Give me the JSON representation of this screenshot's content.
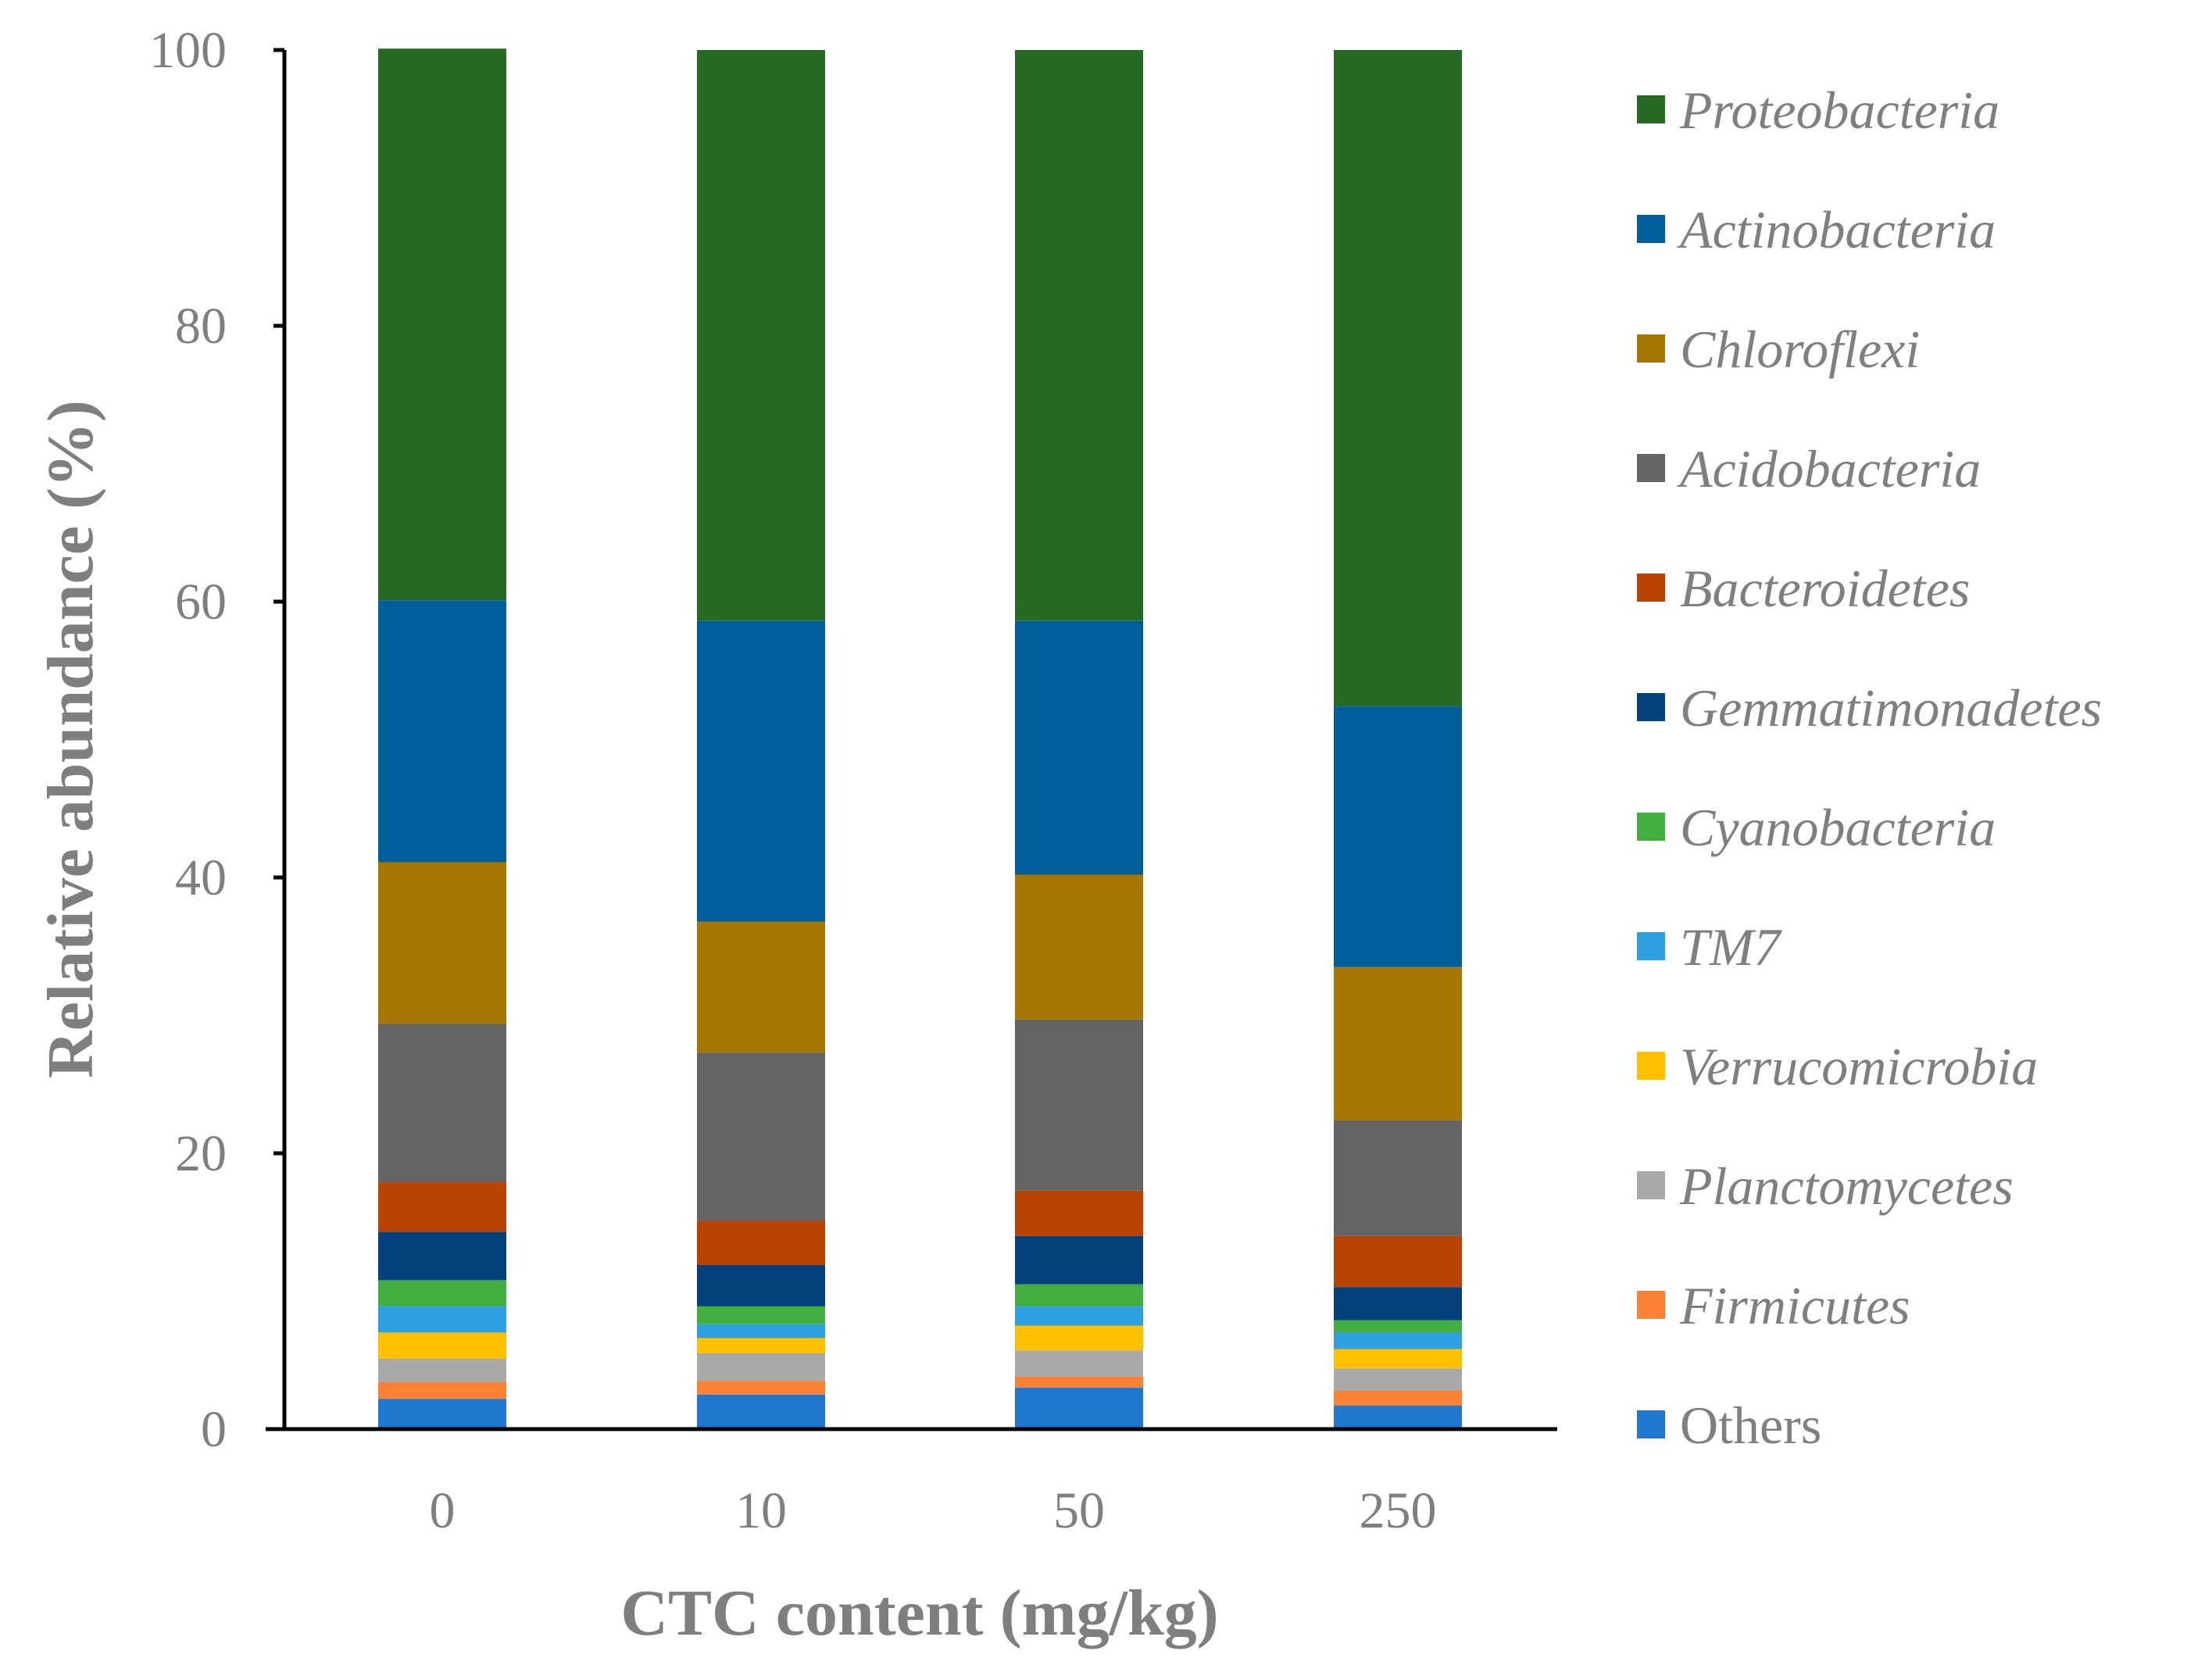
{
  "chart_data": {
    "type": "bar",
    "stacked": true,
    "title": "",
    "xlabel": "CTC content (mg/kg)",
    "ylabel": "Relative abundance (%)",
    "ylim": [
      0,
      100
    ],
    "yticks": [
      0,
      20,
      40,
      60,
      80,
      100
    ],
    "categories": [
      "0",
      "10",
      "50",
      "250"
    ],
    "legend_position": "right",
    "series": [
      {
        "name": "Others",
        "color": "#1f77d0",
        "italic": false,
        "values": [
          2.2,
          2.5,
          3.0,
          1.7
        ]
      },
      {
        "name": "Firmicutes",
        "color": "#fb8234",
        "italic": true,
        "values": [
          1.2,
          1.0,
          0.8,
          1.1
        ]
      },
      {
        "name": "Planctomycetes",
        "color": "#a9a9a9",
        "italic": true,
        "values": [
          1.7,
          2.0,
          1.9,
          1.6
        ]
      },
      {
        "name": "Verrucomicrobia",
        "color": "#ffc000",
        "italic": true,
        "values": [
          1.9,
          1.1,
          1.8,
          1.4
        ]
      },
      {
        "name": "TM7",
        "color": "#2e9fe0",
        "italic": true,
        "values": [
          1.9,
          1.0,
          1.4,
          1.2
        ]
      },
      {
        "name": "Cyanobacteria",
        "color": "#42ae3f",
        "italic": true,
        "values": [
          1.9,
          1.3,
          1.6,
          0.9
        ]
      },
      {
        "name": "Gemmatimonadetes",
        "color": "#04407c",
        "italic": true,
        "values": [
          3.5,
          3.0,
          3.5,
          2.4
        ]
      },
      {
        "name": "Bacteroidetes",
        "color": "#b84302",
        "italic": true,
        "values": [
          3.6,
          3.2,
          3.3,
          3.7
        ]
      },
      {
        "name": "Acidobacteria",
        "color": "#646464",
        "italic": true,
        "values": [
          11.5,
          12.2,
          12.4,
          8.4
        ]
      },
      {
        "name": "Chloroflexi",
        "color": "#a67702",
        "italic": true,
        "values": [
          11.7,
          9.5,
          10.5,
          11.1
        ]
      },
      {
        "name": "Actinobacteria",
        "color": "#005f9a",
        "italic": true,
        "values": [
          19.0,
          21.8,
          18.4,
          18.9
        ]
      },
      {
        "name": "Proteobacteria",
        "color": "#276a23",
        "italic": true,
        "values": [
          40.0,
          41.4,
          41.4,
          47.6
        ]
      }
    ]
  }
}
